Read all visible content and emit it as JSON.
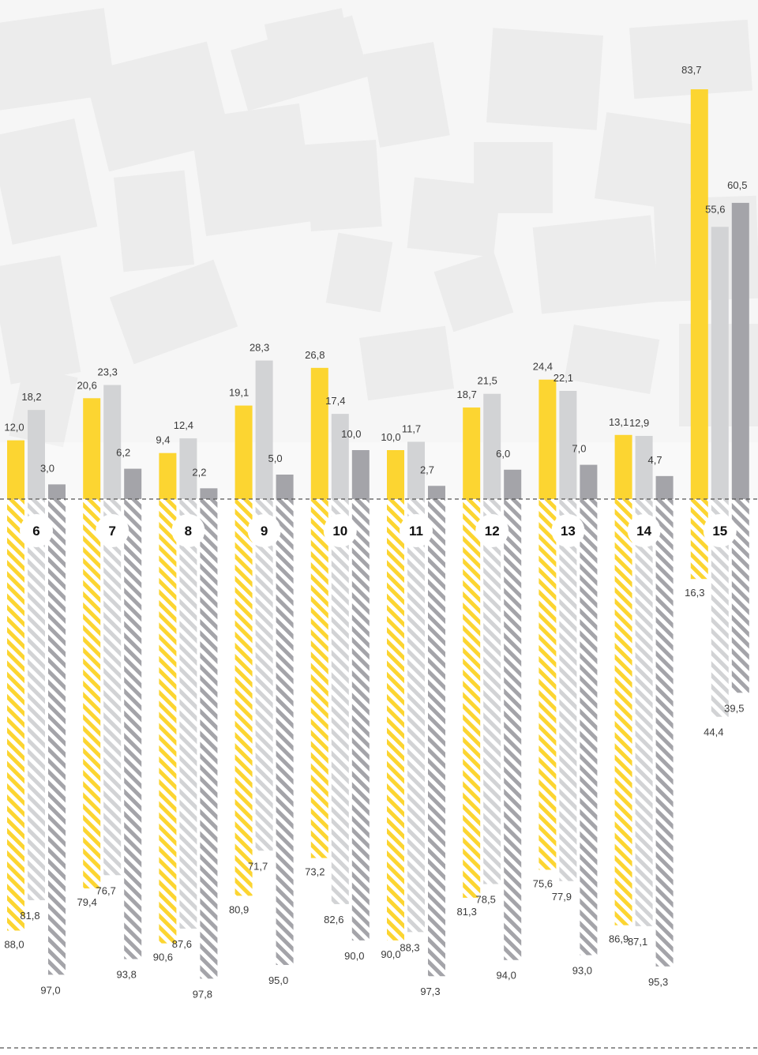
{
  "colors": {
    "series1": "#fcd531",
    "series2": "#d2d3d5",
    "series3": "#a4a4a9",
    "map_block": "#ececec",
    "map_background": "#f6f6f6"
  },
  "chart_data": {
    "type": "bar",
    "description_layout": "diverging stacked columns, upward solid part and downward hatched part, three series per category",
    "categories": [
      "6",
      "7",
      "8",
      "9",
      "10",
      "11",
      "12",
      "13",
      "14",
      "15"
    ],
    "series": [
      {
        "up": [
          12.0,
          20.6,
          9.4,
          19.1,
          26.8,
          10.0,
          18.7,
          24.4,
          13.1,
          83.7
        ],
        "down": [
          88.0,
          79.4,
          90.6,
          80.9,
          73.2,
          90.0,
          81.3,
          75.6,
          86.9,
          16.3
        ]
      },
      {
        "up": [
          18.2,
          23.3,
          12.4,
          28.3,
          17.4,
          11.7,
          21.5,
          22.1,
          12.9,
          55.6
        ],
        "down": [
          81.8,
          76.7,
          87.6,
          71.7,
          82.6,
          88.3,
          78.5,
          77.9,
          87.1,
          44.4
        ]
      },
      {
        "up": [
          3.0,
          6.2,
          2.2,
          5.0,
          10.0,
          2.7,
          6.0,
          7.0,
          4.7,
          60.5
        ],
        "down": [
          97.0,
          93.8,
          97.8,
          95.0,
          90.0,
          97.3,
          94.0,
          93.0,
          95.3,
          39.5
        ]
      }
    ],
    "labels": {
      "up": [
        [
          "12,0",
          "20,6",
          "9,4",
          "19,1",
          "26,8",
          "10,0",
          "18,7",
          "24,4",
          "13,1",
          "83,7"
        ],
        [
          "18,2",
          "23,3",
          "12,4",
          "28,3",
          "17,4",
          "11,7",
          "21,5",
          "22,1",
          "12,9",
          "55,6"
        ],
        [
          "3,0",
          "6,2",
          "2,2",
          "5,0",
          "10,0",
          "2,7",
          "6,0",
          "7,0",
          "4,7",
          "60,5"
        ]
      ],
      "down": [
        [
          "88,0",
          "79,4",
          "90,6",
          "80,9",
          "73,2",
          "90,0",
          "81,3",
          "75,6",
          "86,9",
          "16,3"
        ],
        [
          "81,8",
          "76,7",
          "87,6",
          "71,7",
          "82,6",
          "88,3",
          "78,5",
          "77,9",
          "87,1",
          "44,4"
        ],
        [
          "97,0",
          "93,8",
          "97,8",
          "95,0",
          "90,0",
          "97,3",
          "94,0",
          "93,0",
          "95,3",
          "39,5"
        ]
      ]
    },
    "ylim_up": [
      0,
      100
    ],
    "ylim_down": [
      0,
      100
    ],
    "grid": false,
    "legend": "none"
  }
}
